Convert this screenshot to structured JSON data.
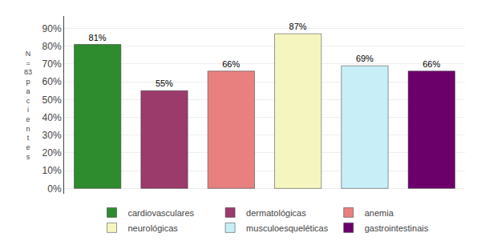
{
  "chart_data": {
    "type": "bar",
    "y_label": "N\n=\n83\np\na\nc\ni\ne\nn\nt\ne\ns",
    "categories": [
      "cardiovasculares",
      "dermatológicas",
      "anemia",
      "neurológicas",
      "musculoesqueléticas",
      "gastrointestinais"
    ],
    "values": [
      81,
      55,
      66,
      87,
      69,
      66
    ],
    "value_labels": [
      "81%",
      "55%",
      "66%",
      "87%",
      "69%",
      "66%"
    ],
    "colors": [
      "#2e8b2e",
      "#9b3b6b",
      "#e88080",
      "#f5f5c0",
      "#c8eef8",
      "#6b006b"
    ],
    "ylim": [
      -3,
      97
    ],
    "yticks": [
      {
        "value": 0,
        "label": "0%"
      },
      {
        "value": 10,
        "label": "10%"
      },
      {
        "value": 20,
        "label": "20%"
      },
      {
        "value": 30,
        "label": "30%"
      },
      {
        "value": 40,
        "label": "40%"
      },
      {
        "value": 50,
        "label": "50%"
      },
      {
        "value": 60,
        "label": "60%"
      },
      {
        "value": 70,
        "label": "70%"
      },
      {
        "value": 80,
        "label": "80%"
      },
      {
        "value": 90,
        "label": "90%"
      }
    ],
    "grid": true,
    "legend": "bottom",
    "data_labels": true,
    "tick_labels": "y"
  }
}
